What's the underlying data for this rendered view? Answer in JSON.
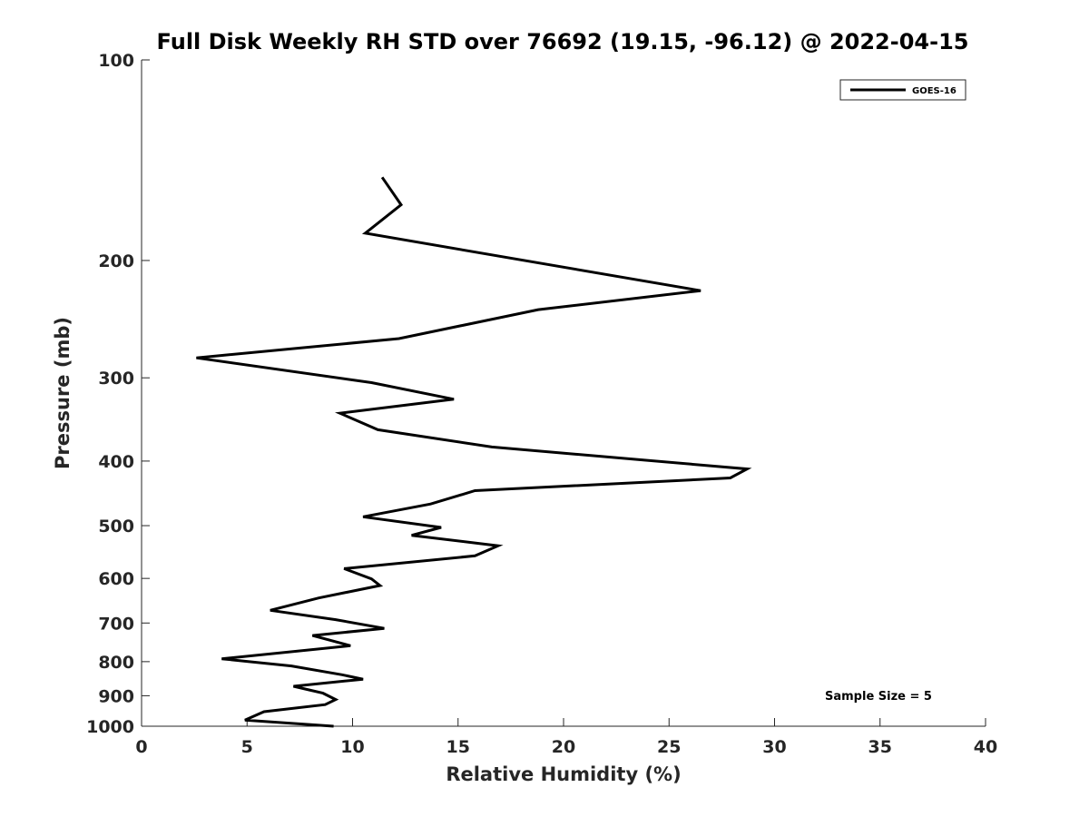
{
  "chart_data": {
    "type": "line",
    "title": "Full Disk Weekly RH STD over 76692 (19.15, -96.12) @ 2022-04-15",
    "xlabel": "Relative Humidity (%)",
    "ylabel": "Pressure (mb)",
    "xlim": [
      0,
      40
    ],
    "ylim": [
      100,
      1000
    ],
    "yscale": "log",
    "y_reversed": true,
    "xticks": [
      0,
      5,
      10,
      15,
      20,
      25,
      30,
      35,
      40
    ],
    "yticks": [
      100,
      200,
      300,
      400,
      500,
      600,
      700,
      800,
      900,
      1000
    ],
    "grid": false,
    "legend_position": "top-right",
    "annotation": "Sample Size = 5",
    "series": [
      {
        "name": "GOES-16",
        "color": "#000000",
        "x": [
          11.4,
          12.3,
          10.6,
          26.5,
          18.8,
          12.2,
          2.6,
          10.9,
          14.8,
          9.4,
          11.2,
          16.6,
          28.7,
          27.9,
          15.8,
          13.7,
          10.5,
          14.2,
          12.8,
          16.9,
          15.8,
          9.6,
          10.9,
          11.3,
          8.4,
          6.1,
          9.2,
          11.5,
          8.1,
          9.9,
          3.8,
          7.1,
          9.5,
          10.5,
          7.2,
          8.6,
          9.2,
          8.7,
          5.8,
          4.9,
          9.1
        ],
        "y": [
          150,
          165,
          182,
          222,
          237,
          262,
          280,
          305,
          323,
          339,
          359,
          381,
          411,
          424,
          443,
          464,
          485,
          503,
          517,
          536,
          555,
          580,
          601,
          615,
          642,
          670,
          692,
          713,
          731,
          757,
          792,
          812,
          837,
          850,
          871,
          892,
          912,
          928,
          951,
          979,
          1000
        ]
      }
    ]
  }
}
